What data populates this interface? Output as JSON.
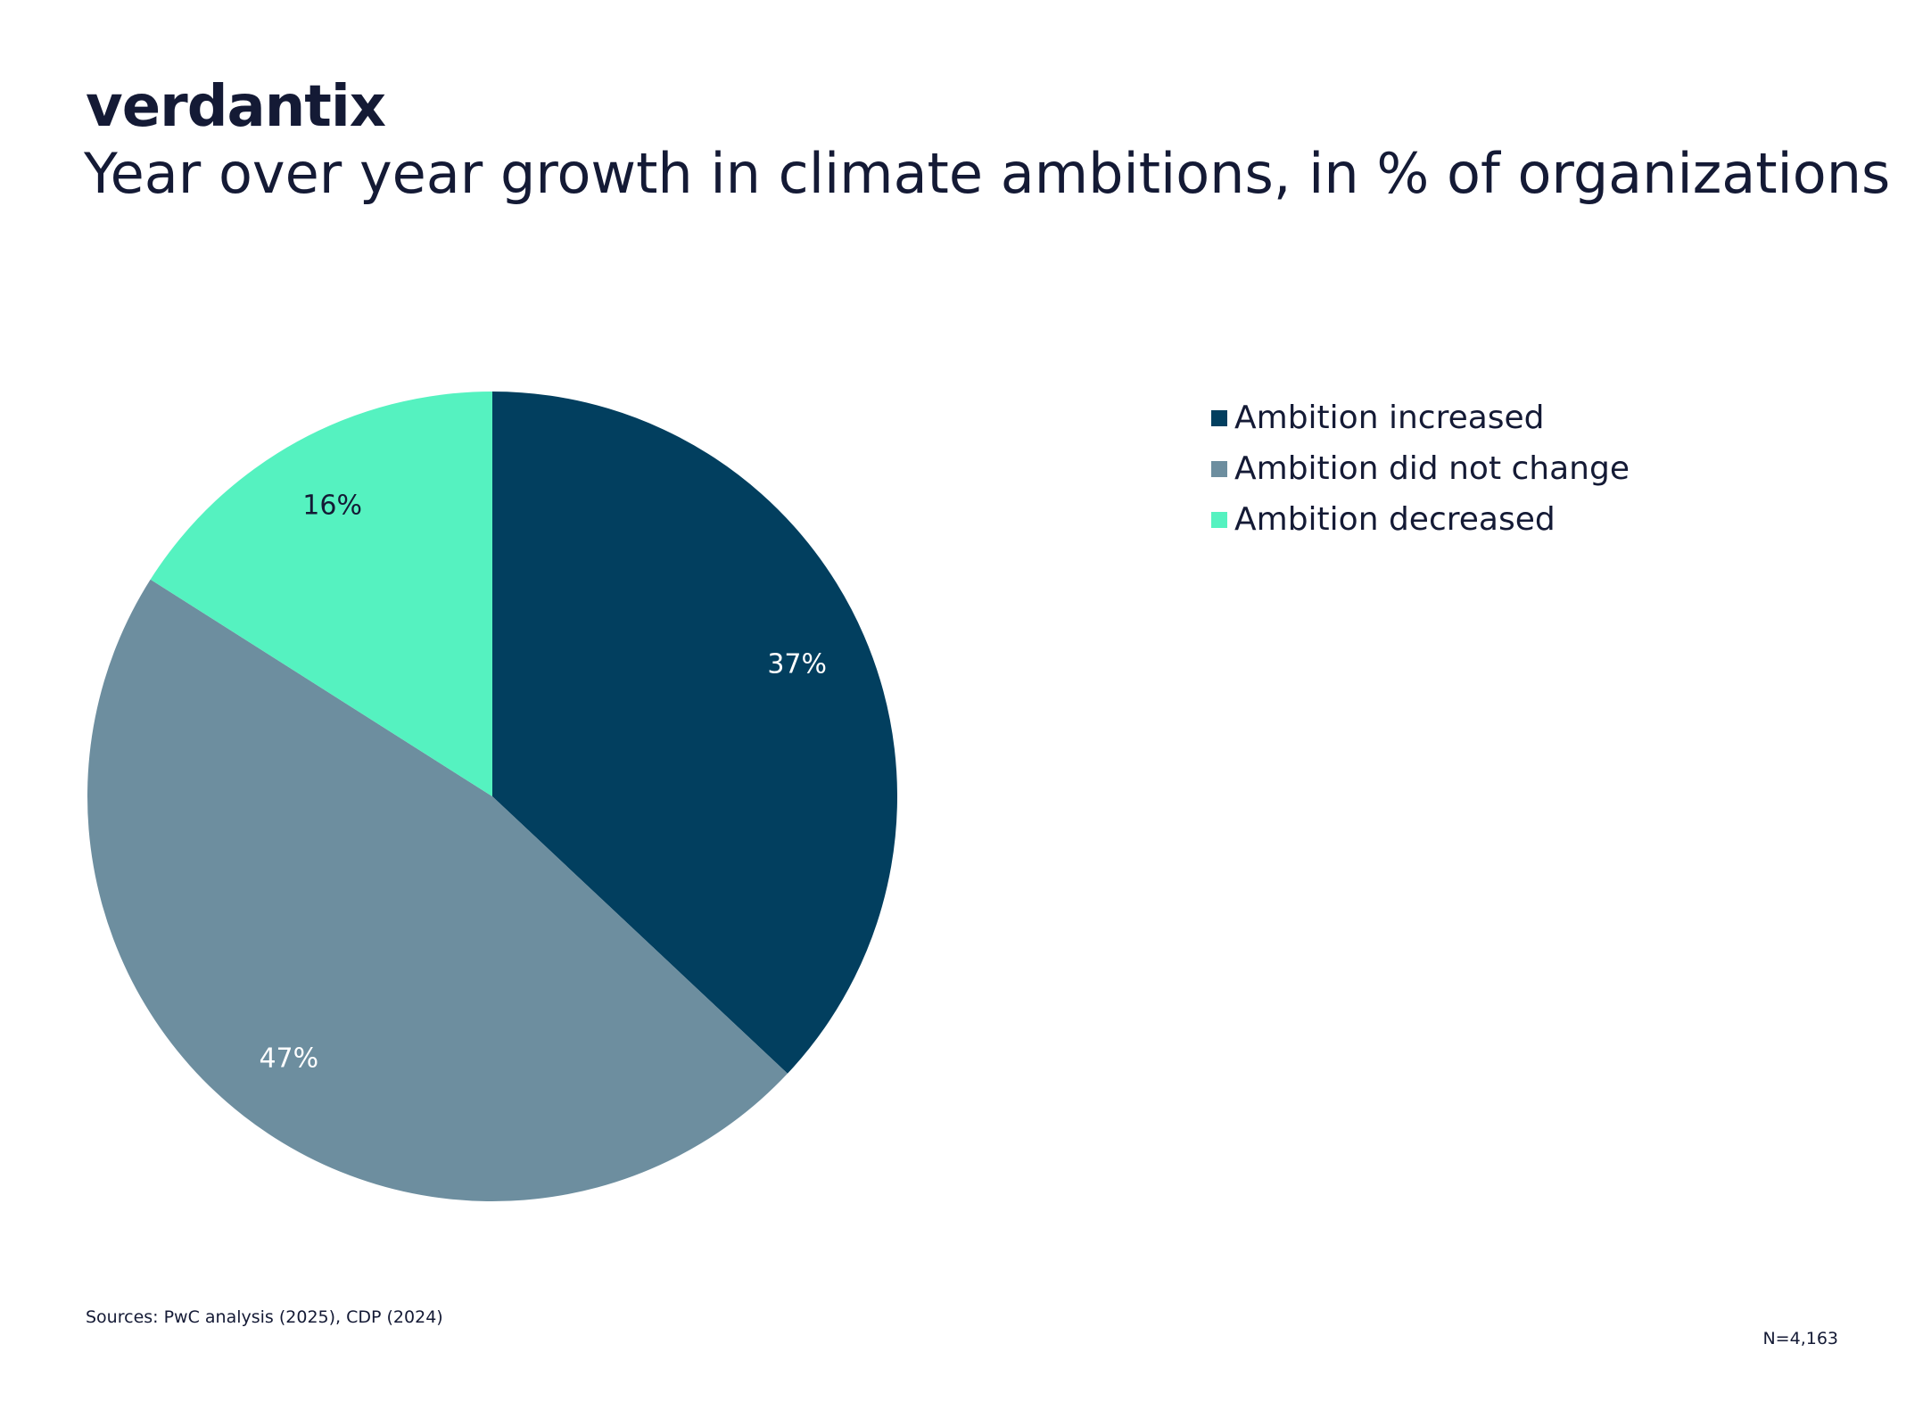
{
  "brand": {
    "logo_text": "verdantix"
  },
  "chart_data": {
    "type": "pie",
    "title": "Year over year growth in climate ambitions, in % of organizations",
    "start_angle_deg": 0,
    "direction": "clockwise",
    "slices": [
      {
        "label": "Ambition increased",
        "value": 37,
        "display": "37%",
        "color": "#023f5f",
        "label_color": "#ffffff"
      },
      {
        "label": "Ambition did not change",
        "value": 47,
        "display": "47%",
        "color": "#6d8e9f",
        "label_color": "#ffffff"
      },
      {
        "label": "Ambition decreased",
        "value": 16,
        "display": "16%",
        "color": "#55f2c0",
        "label_color": "#141a35"
      }
    ],
    "legend_position": "right"
  },
  "footer": {
    "sources": "Sources: PwC analysis (2025), CDP (2024)",
    "sample_size": "N=4,163"
  }
}
